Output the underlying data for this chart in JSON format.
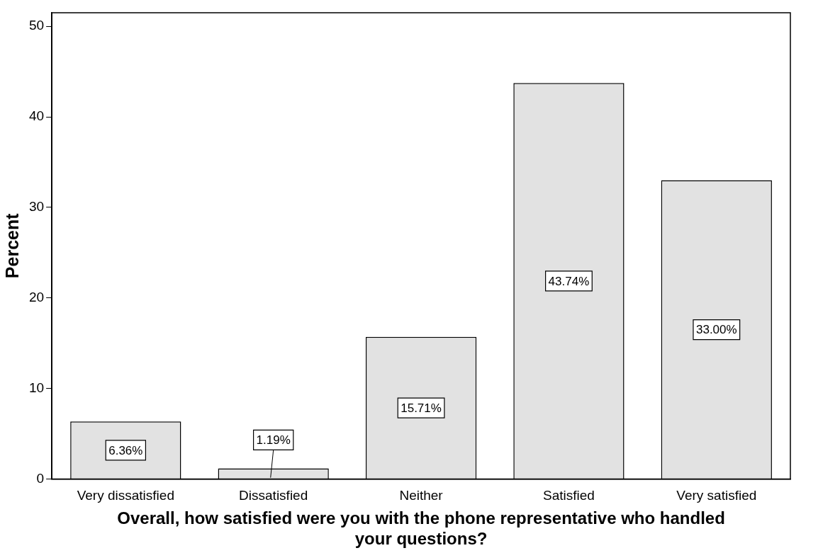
{
  "chart_data": {
    "type": "bar",
    "xlabel": "Overall, how satisfied were you with the phone representative who handled your questions?",
    "ylabel": "Percent",
    "categories": [
      "Very dissatisfied",
      "Dissatisfied",
      "Neither",
      "Satisfied",
      "Very satisfied"
    ],
    "values": [
      6.36,
      1.19,
      15.71,
      43.74,
      33.0
    ],
    "value_labels": [
      "6.36%",
      "1.19%",
      "15.71%",
      "43.74%",
      "33.00%"
    ],
    "color": "#e2e2e2",
    "ylim": [
      0,
      51.5
    ],
    "yticks": [
      0,
      10,
      20,
      30,
      40,
      50
    ],
    "grid": false,
    "legend": false
  }
}
